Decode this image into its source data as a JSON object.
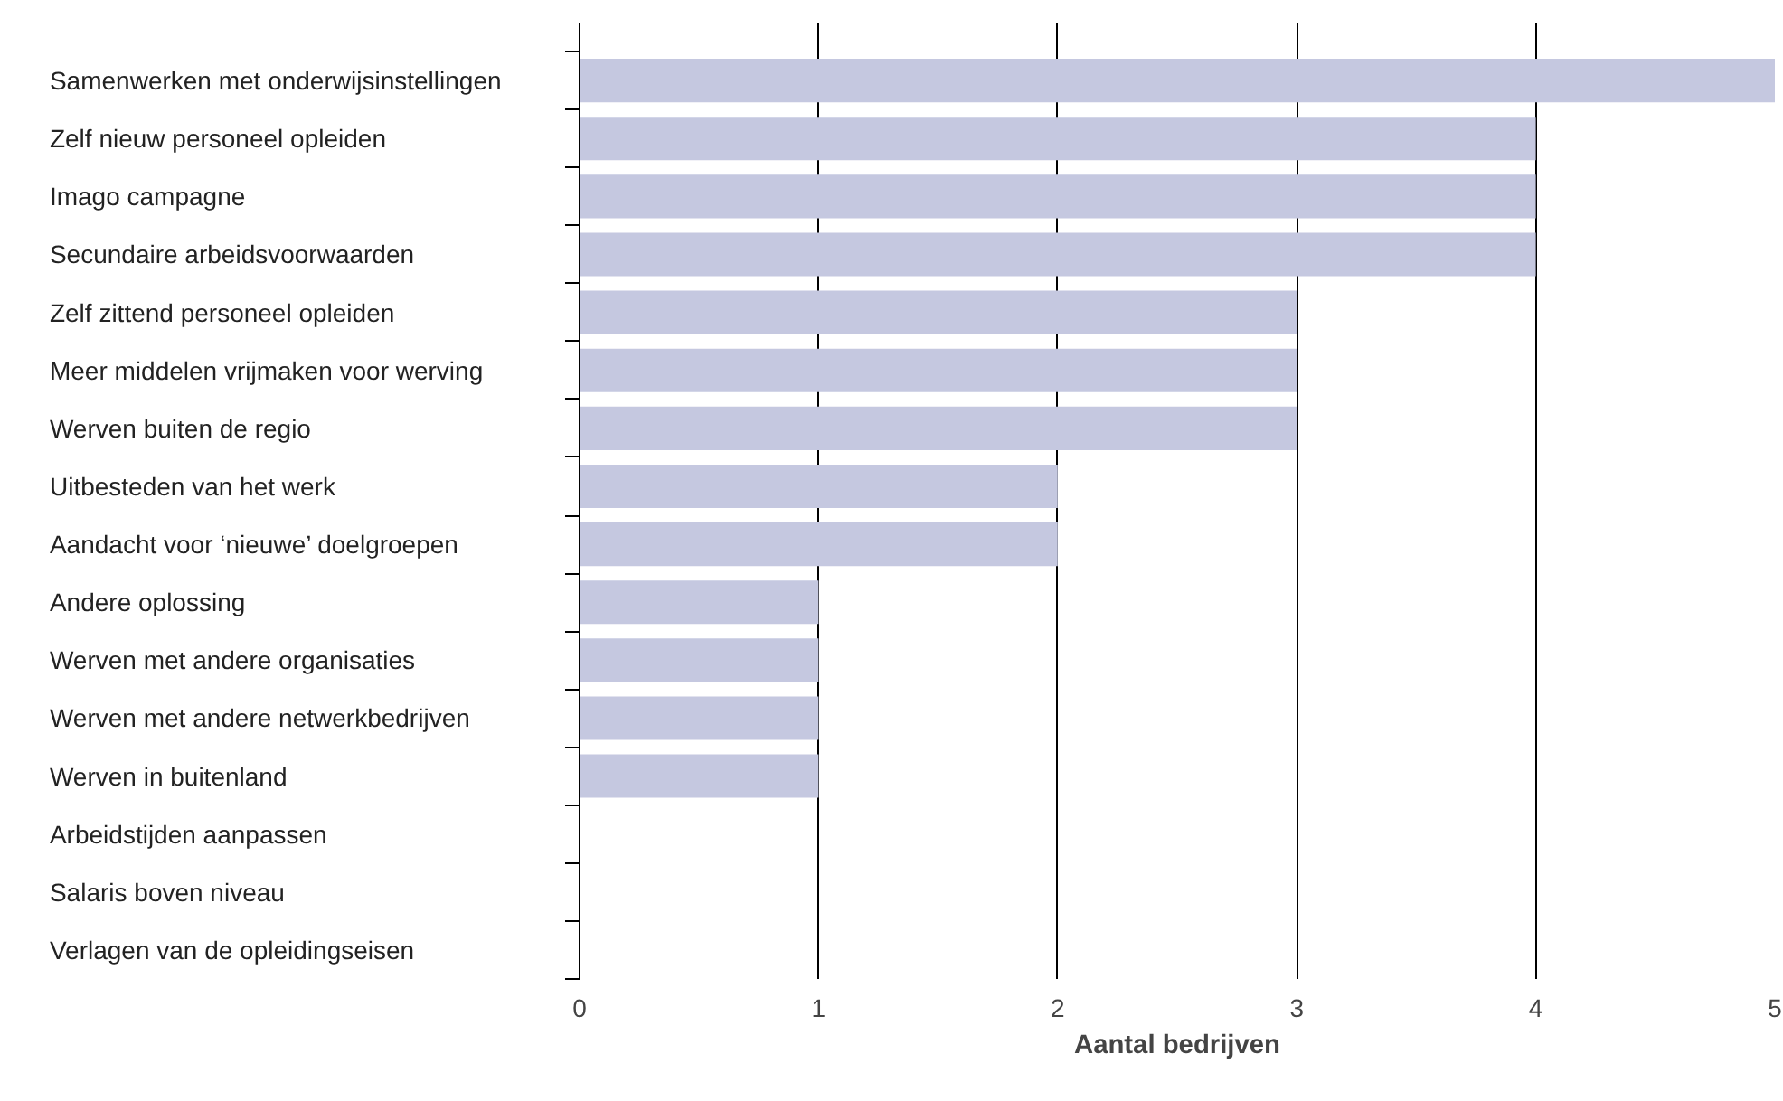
{
  "chart_data": {
    "type": "bar",
    "orientation": "horizontal",
    "xlabel": "Aantal bedrijven",
    "categories": [
      "Samenwerken met onderwijsinstellingen",
      "Zelf nieuw personeel opleiden",
      "Imago campagne",
      "Secundaire arbeidsvoorwaarden",
      "Zelf zittend personeel opleiden",
      "Meer middelen vrijmaken voor werving",
      "Werven buiten de regio",
      "Uitbesteden van het werk",
      "Aandacht voor ‘nieuwe’ doelgroepen",
      "Andere oplossing",
      "Werven met andere organisaties",
      "Werven met andere netwerkbedrijven",
      "Werven in buitenland",
      "Arbeidstijden aanpassen",
      "Salaris boven niveau",
      "Verlagen van de opleidingseisen"
    ],
    "values": [
      5,
      4,
      4,
      4,
      3,
      3,
      3,
      2,
      2,
      1,
      1,
      1,
      1,
      0,
      0,
      0
    ],
    "color": "#c5c8e0",
    "xlim": [
      0,
      5
    ],
    "xticks": [
      0,
      1,
      2,
      3,
      4,
      5
    ],
    "grid": "x"
  }
}
